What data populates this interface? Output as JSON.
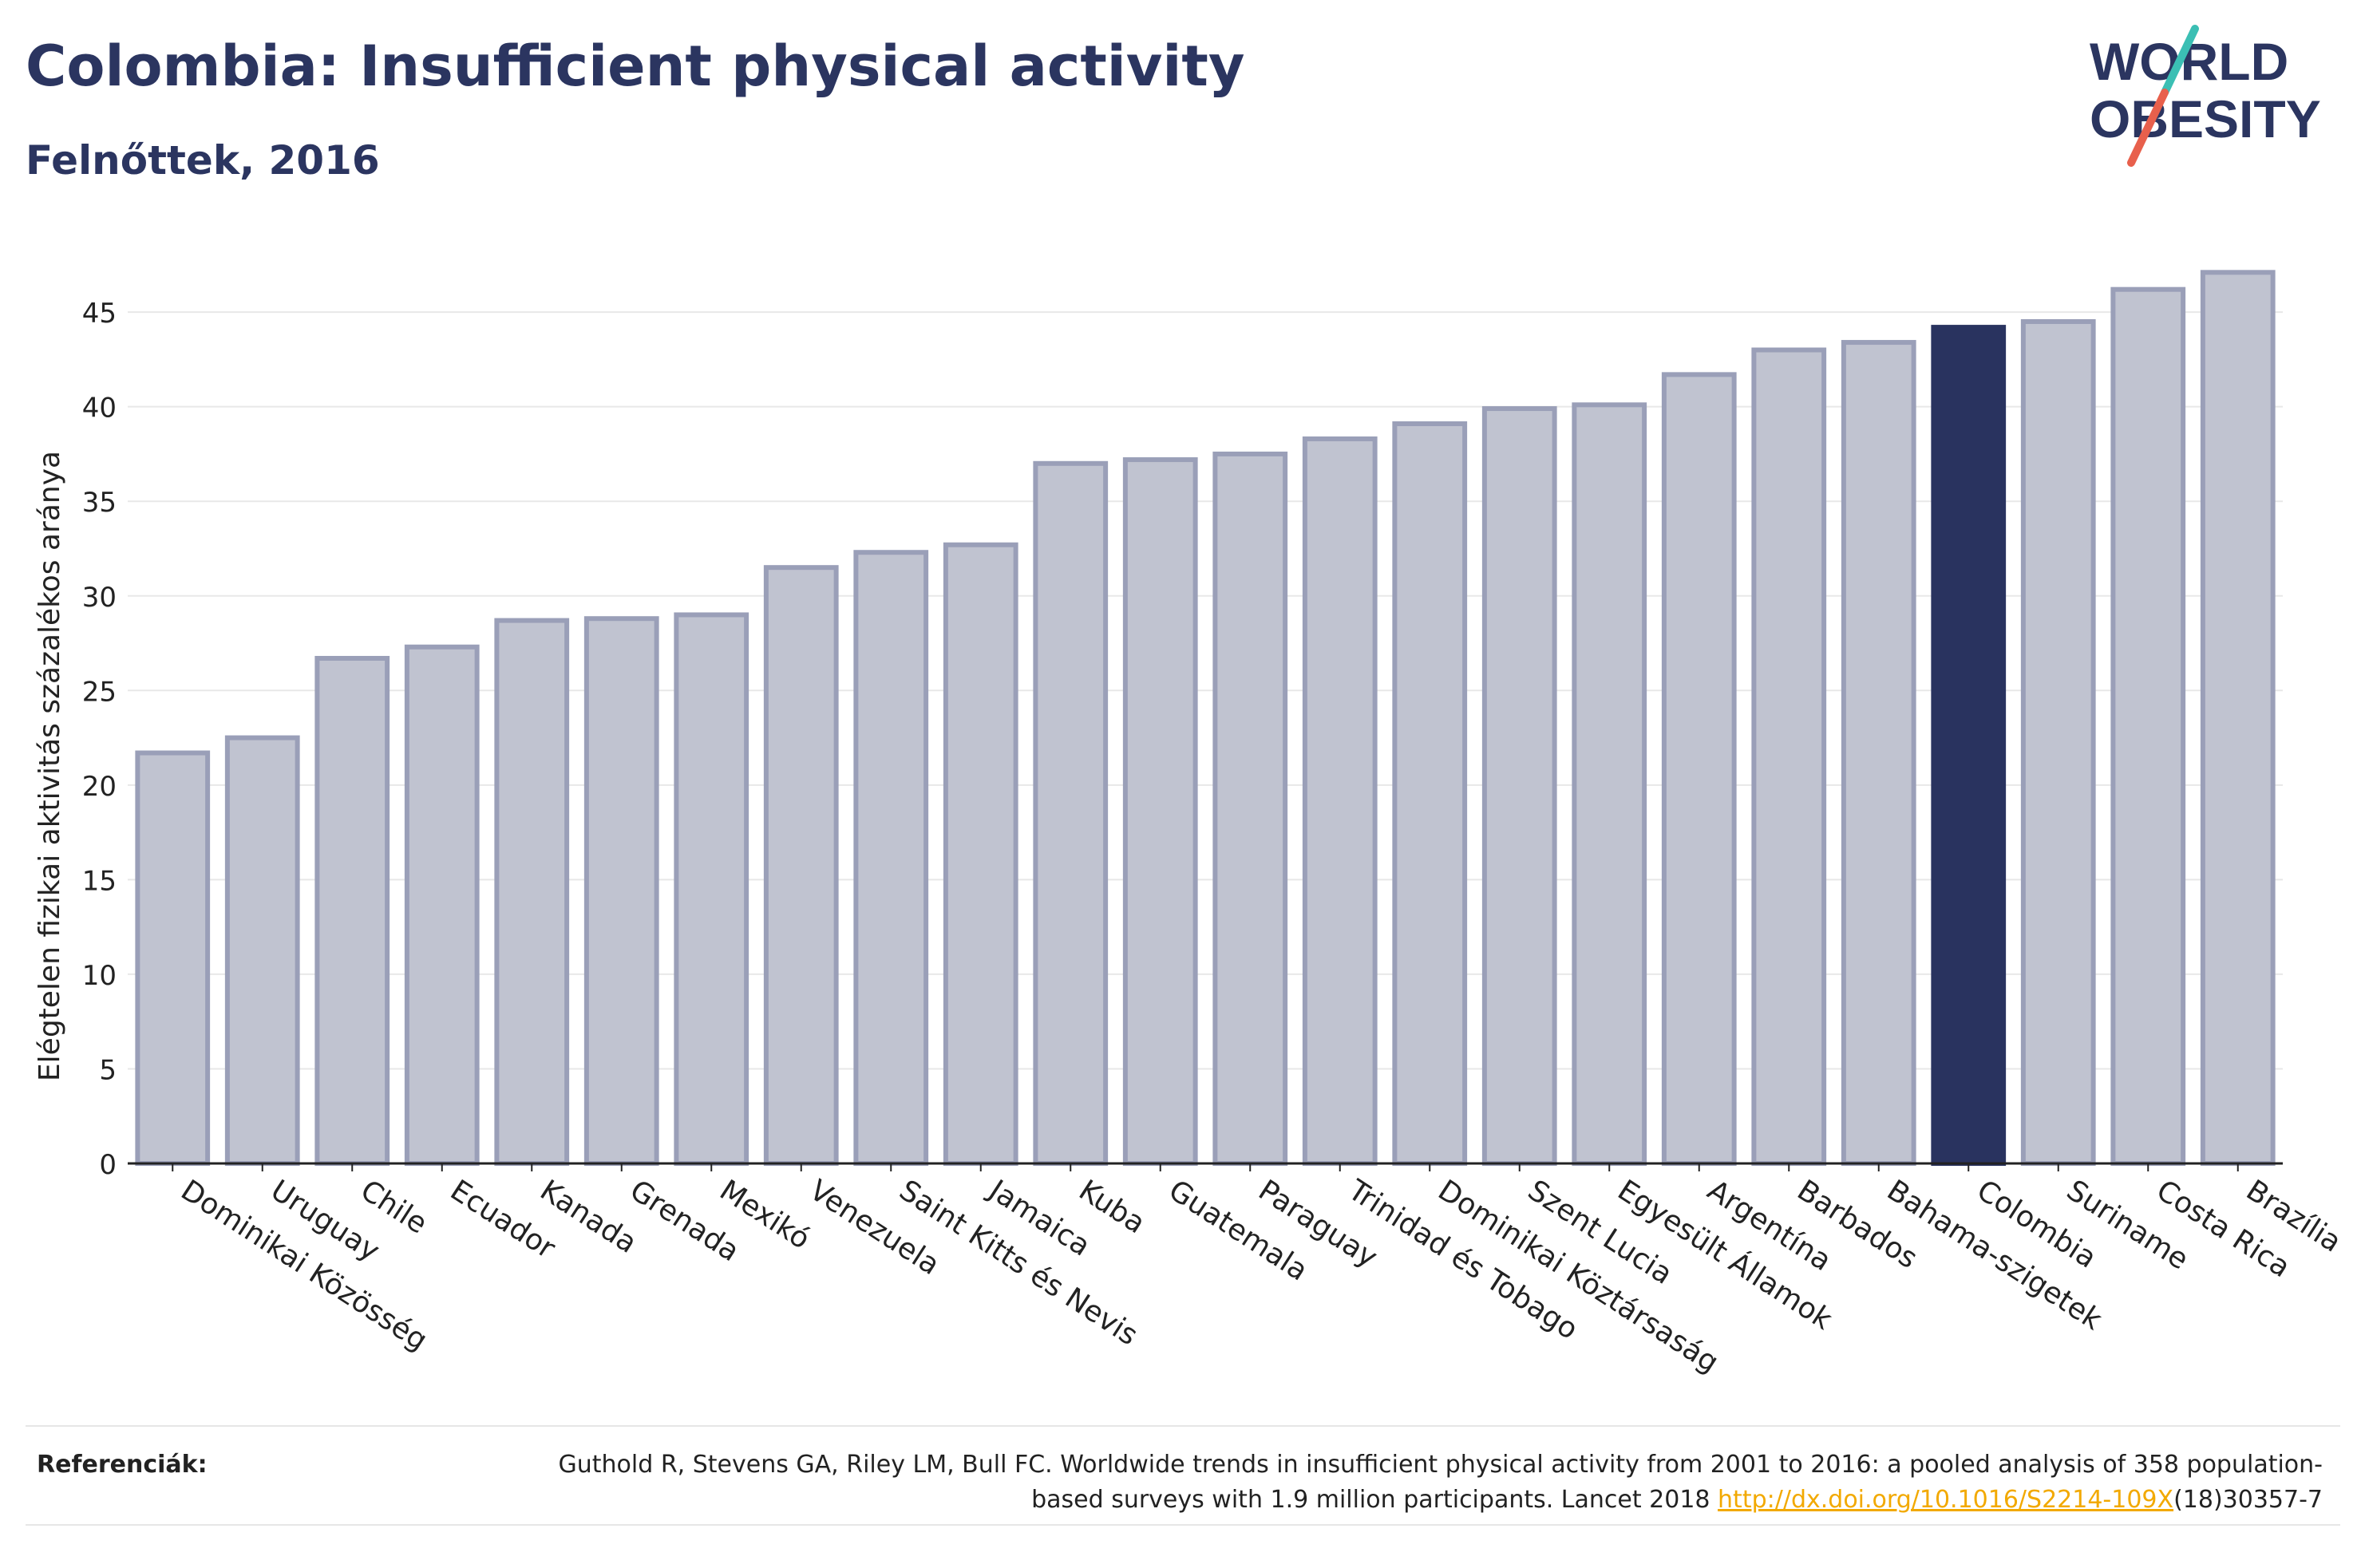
{
  "header": {
    "title": "Colombia: Insufficient physical activity",
    "subtitle": "Felnőttek, 2016"
  },
  "logo": {
    "line1": "WORLD",
    "line2": "OBESITY",
    "text_color": "#2b3560",
    "slash_top_color": "#3bbfb4",
    "slash_bottom_color": "#e8604c"
  },
  "colors": {
    "bar_fill": "#c0c3d0",
    "bar_stroke": "#9a9fb8",
    "highlight_fill": "#29335f",
    "grid": "#e8e8e8",
    "axis": "#222222",
    "link": "#f2a900"
  },
  "chart_data": {
    "type": "bar",
    "title": "",
    "ylabel": "Elégtelen fizikai aktivitás százalékos aránya",
    "xlabel": "",
    "ylim": [
      0,
      48
    ],
    "yticks": [
      0,
      5,
      10,
      15,
      20,
      25,
      30,
      35,
      40,
      45
    ],
    "grid": true,
    "categories": [
      "Dominikai Közösség",
      "Uruguay",
      "Chile",
      "Ecuador",
      "Kanada",
      "Grenada",
      "Mexikó",
      "Venezuela",
      "Saint Kitts és Nevis",
      "Jamaica",
      "Kuba",
      "Guatemala",
      "Paraguay",
      "Trinidad és Tobago",
      "Dominikai Köztársaság",
      "Szent Lucia",
      "Egyesült Államok",
      "Argentína",
      "Barbados",
      "Bahama-szigetek",
      "Colombia",
      "Suriname",
      "Costa Rica",
      "Brazília"
    ],
    "values": [
      21.7,
      22.5,
      26.7,
      27.3,
      28.7,
      28.8,
      29.0,
      31.5,
      32.3,
      32.7,
      37.0,
      37.2,
      37.5,
      38.3,
      39.1,
      39.9,
      40.1,
      41.7,
      43.0,
      43.4,
      44.2,
      44.5,
      46.2,
      47.1
    ],
    "highlight": "Colombia"
  },
  "references": {
    "label": "Referenciák:",
    "text_before_link": "Guthold R, Stevens GA, Riley LM, Bull FC. Worldwide trends in insufficient physical activity from 2001 to 2016: a pooled analysis of 358 population-based surveys with 1.9 million participants. Lancet 2018 ",
    "link_text": "http://dx.doi.org/10.1016/S2214-109X",
    "text_after_link": "(18)30357-7"
  }
}
